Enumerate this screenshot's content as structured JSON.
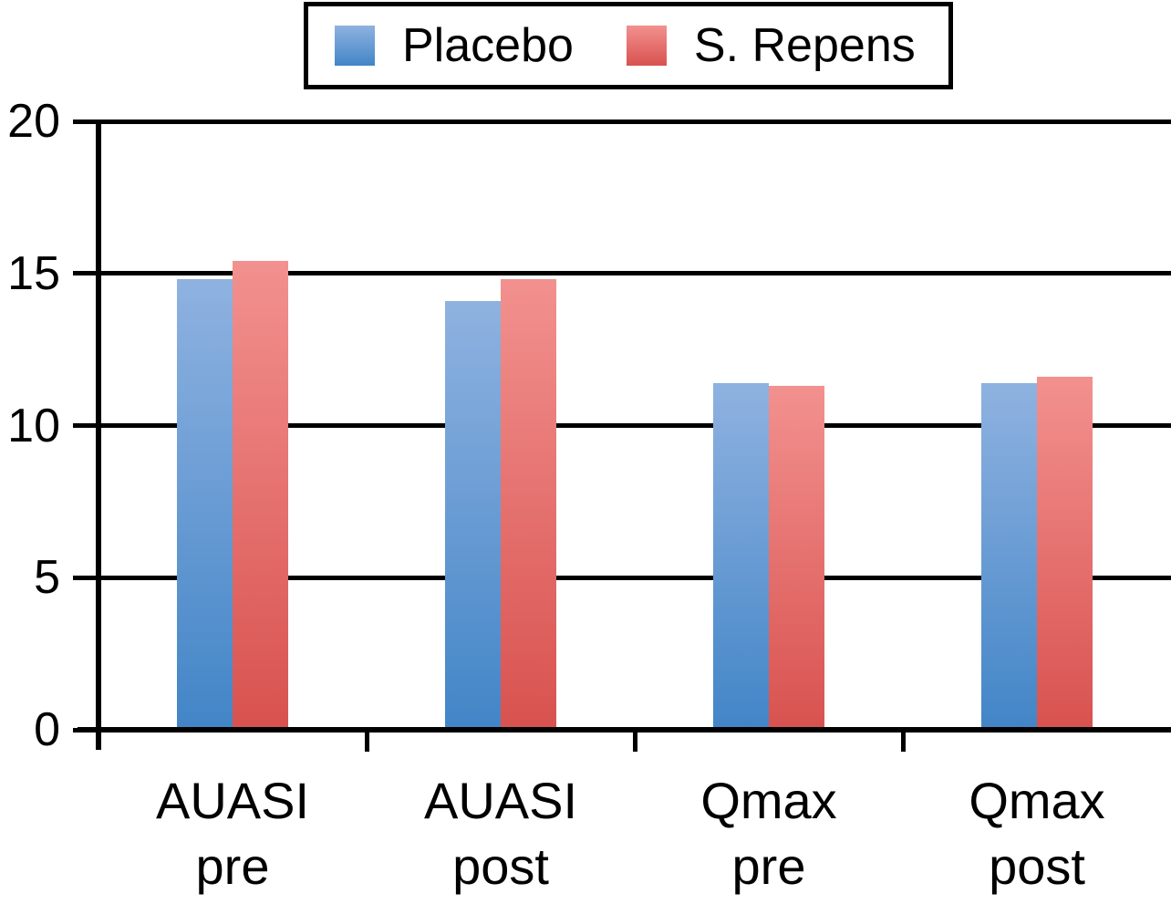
{
  "figure": {
    "background": "#ffffff",
    "axis_color": "#000000",
    "text_color": "#000000"
  },
  "legend": {
    "position": "top-center",
    "border_color": "#000000",
    "items": [
      "Placebo",
      "S. Repens"
    ]
  },
  "chart_data": {
    "type": "bar",
    "title": "",
    "xlabel": "",
    "ylabel": "",
    "categories": [
      {
        "label": "AUASI pre",
        "lines": [
          "AUASI",
          "pre"
        ]
      },
      {
        "label": "AUASI post",
        "lines": [
          "AUASI",
          "post"
        ]
      },
      {
        "label": "Qmax pre",
        "lines": [
          "Qmax",
          "pre"
        ]
      },
      {
        "label": "Qmax post",
        "lines": [
          "Qmax",
          "post"
        ]
      }
    ],
    "series": [
      {
        "name": "Placebo",
        "values": [
          14.8,
          14.1,
          11.4,
          11.4
        ],
        "color_top": "#8FB2E0",
        "color_bottom": "#4285C7"
      },
      {
        "name": "S. Repens",
        "values": [
          15.4,
          14.8,
          11.3,
          11.6
        ],
        "color_top": "#F2918F",
        "color_bottom": "#D8524F"
      }
    ],
    "y_axis": {
      "ticks": [
        0,
        5,
        10,
        15,
        20
      ],
      "range": [
        0,
        20
      ]
    },
    "ylim": [
      0,
      20
    ],
    "grid": true,
    "gridlines_behind_bars": true,
    "legend_position": "top"
  }
}
